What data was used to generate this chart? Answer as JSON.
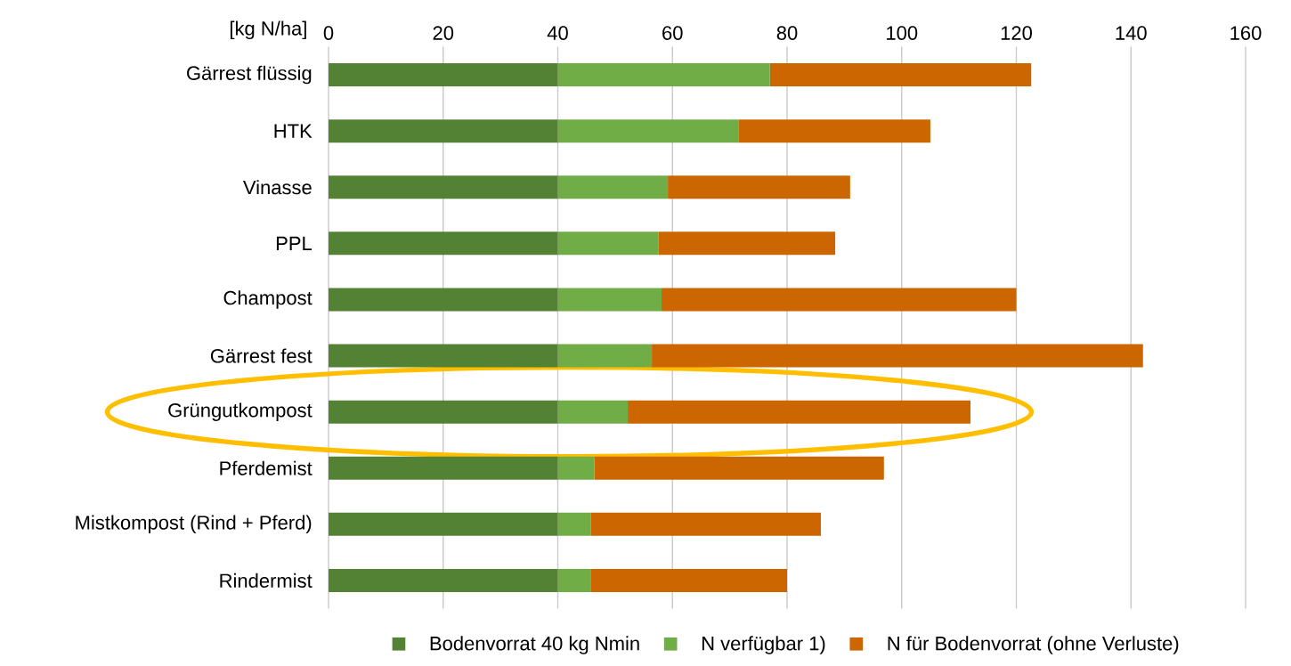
{
  "chart_data": {
    "type": "bar",
    "orientation": "horizontal",
    "stacked": true,
    "xlabel": "[kg N/ha]",
    "categories": [
      "Gärrest flüssig",
      "HTK",
      "Vinasse",
      "PPL",
      "Champost",
      "Gärrest fest",
      "Grüngutkompost",
      "Pferdemist",
      "Mistkompost (Rind + Pferd)",
      "Rindermist"
    ],
    "series": [
      {
        "name": "Bodenvorrat 40 kg Nmin",
        "color": "#548235",
        "values": [
          40,
          40,
          40,
          40,
          40,
          40,
          40,
          40,
          40,
          40
        ]
      },
      {
        "name": "N verfügbar 1)",
        "color": "#70ad47",
        "values": [
          37,
          31.5,
          19.2,
          17.6,
          18.1,
          16.4,
          12.2,
          6.4,
          5.8,
          5.7
        ]
      },
      {
        "name": "N für Bodenvorrat (ohne Verluste)",
        "color": "#cc6600",
        "values": [
          45.6,
          33.5,
          31.8,
          30.8,
          61.9,
          85.7,
          59.8,
          50.5,
          40.1,
          34.3
        ]
      }
    ],
    "xlim": [
      0,
      160
    ],
    "xticks": [
      0,
      20,
      40,
      60,
      80,
      100,
      120,
      140,
      160
    ],
    "grid": "x",
    "legend": "bottom"
  }
}
